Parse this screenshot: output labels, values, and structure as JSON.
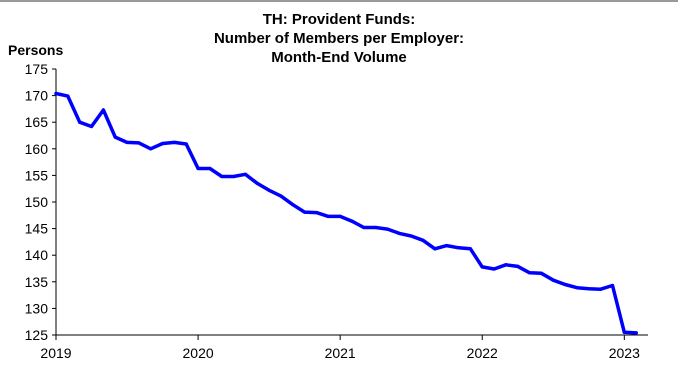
{
  "chart_data": {
    "type": "line",
    "title_lines": [
      "TH: Provident Funds:",
      "Number of Members per Employer:",
      "Month-End Volume"
    ],
    "xlabel": "",
    "ylabel": "Persons",
    "xlim": [
      2019,
      2023.1667
    ],
    "ylim": [
      125,
      175
    ],
    "yticks": [
      125,
      130,
      135,
      140,
      145,
      150,
      155,
      160,
      165,
      170,
      175
    ],
    "xticks": [
      2019,
      2020,
      2021,
      2022,
      2023
    ],
    "grid": false,
    "legend": "none",
    "series": [
      {
        "color": "#0000ff",
        "x": [
          2019.0,
          2019.0833,
          2019.1667,
          2019.25,
          2019.3333,
          2019.4167,
          2019.5,
          2019.5833,
          2019.6667,
          2019.75,
          2019.8333,
          2019.9167,
          2020.0,
          2020.0833,
          2020.1667,
          2020.25,
          2020.3333,
          2020.4167,
          2020.5,
          2020.5833,
          2020.6667,
          2020.75,
          2020.8333,
          2020.9167,
          2021.0,
          2021.0833,
          2021.1667,
          2021.25,
          2021.3333,
          2021.4167,
          2021.5,
          2021.5833,
          2021.6667,
          2021.75,
          2021.8333,
          2021.9167,
          2022.0,
          2022.0833,
          2022.1667,
          2022.25,
          2022.3333,
          2022.4167,
          2022.5,
          2022.5833,
          2022.6667,
          2022.75,
          2022.8333,
          2022.9167,
          2023.0,
          2023.0833
        ],
        "values": [
          170.4,
          169.9,
          165.0,
          164.2,
          167.3,
          162.2,
          161.2,
          161.1,
          160.0,
          161.0,
          161.2,
          160.9,
          156.3,
          156.3,
          154.8,
          154.8,
          155.2,
          153.5,
          152.2,
          151.1,
          149.5,
          148.1,
          148.0,
          147.3,
          147.3,
          146.4,
          145.2,
          145.2,
          144.9,
          144.1,
          143.6,
          142.8,
          141.2,
          141.8,
          141.4,
          141.2,
          137.8,
          137.4,
          138.2,
          137.9,
          136.7,
          136.6,
          135.3,
          134.5,
          133.9,
          133.7,
          133.6,
          134.3,
          125.5,
          125.4
        ]
      }
    ]
  }
}
